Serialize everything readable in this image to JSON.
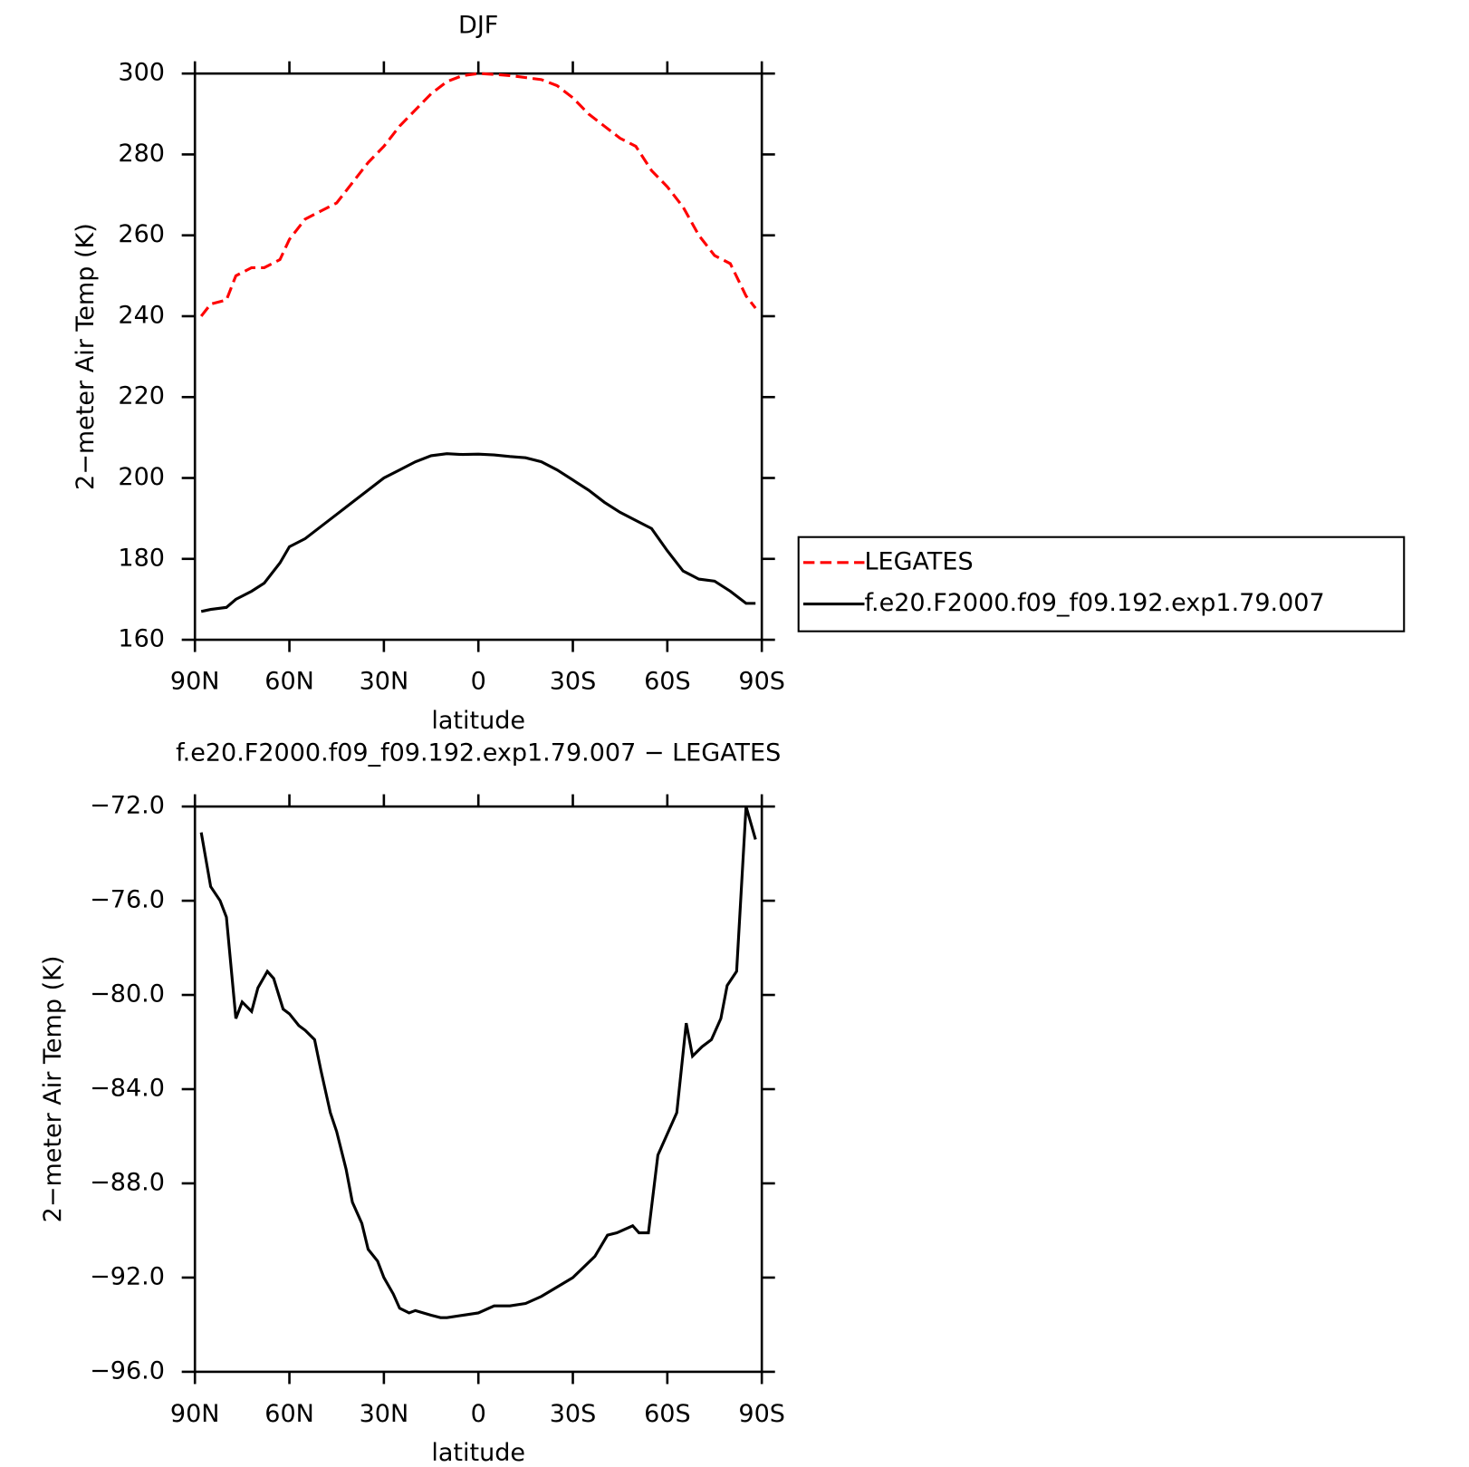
{
  "chart_data": [
    {
      "type": "line",
      "title": "DJF",
      "xlabel": "latitude",
      "ylabel": "2−meter Air Temp (K)",
      "x": [
        88,
        85,
        80,
        77,
        72,
        68,
        63,
        60,
        55,
        50,
        45,
        40,
        35,
        30,
        25,
        20,
        15,
        10,
        5,
        0,
        -5,
        -10,
        -15,
        -20,
        -25,
        -30,
        -35,
        -40,
        -45,
        -50,
        -55,
        -60,
        -65,
        -70,
        -75,
        -80,
        -85,
        -88
      ],
      "series": [
        {
          "name": "LEGATES",
          "color": "#ff0000",
          "style": "dashed",
          "values": [
            240,
            243,
            244,
            250,
            252,
            252,
            254,
            259,
            264,
            266,
            268,
            273,
            278,
            282,
            287,
            291,
            295,
            298,
            299.5,
            300,
            299.8,
            299.5,
            299,
            298.5,
            297,
            294,
            290,
            287,
            284,
            282,
            276,
            272,
            267,
            260,
            255,
            253,
            245,
            242
          ]
        },
        {
          "name": "f.e20.F2000.f09_f09.192.exp1.79.007",
          "color": "#000000",
          "style": "solid",
          "values": [
            167,
            167.5,
            168,
            170,
            172,
            174,
            179,
            183,
            185,
            188,
            191,
            194,
            197,
            200,
            202,
            204,
            205.5,
            206,
            205.8,
            205.9,
            205.7,
            205.3,
            205,
            204,
            202,
            199.5,
            197,
            194,
            191.5,
            189.5,
            187.5,
            182,
            177,
            175,
            174.5,
            172,
            169,
            169
          ]
        }
      ],
      "xlim": [
        90,
        -90
      ],
      "xticks": [
        {
          "value": 90,
          "label": "90N"
        },
        {
          "value": 60,
          "label": "60N"
        },
        {
          "value": 30,
          "label": "30N"
        },
        0,
        {
          "value": -30,
          "label": "30S"
        },
        {
          "value": -60,
          "label": "60S"
        },
        {
          "value": -90,
          "label": "90S"
        }
      ],
      "ylim": [
        160,
        300
      ],
      "yticks": [
        160,
        180,
        200,
        220,
        240,
        260,
        280,
        300
      ],
      "legend": "right"
    },
    {
      "type": "line",
      "title": "f.e20.F2000.f09_f09.192.exp1.79.007 − LEGATES",
      "xlabel": "latitude",
      "ylabel": "2−meter Air Temp (K)",
      "color": "#000000",
      "style": "solid",
      "x": [
        88,
        85,
        82,
        80,
        77,
        75,
        72,
        70,
        67,
        65,
        62,
        60,
        57,
        55,
        52,
        50,
        47,
        45,
        42,
        40,
        37,
        35,
        32,
        30,
        27,
        25,
        22,
        20,
        15,
        12,
        10,
        5,
        0,
        -5,
        -10,
        -15,
        -20,
        -25,
        -30,
        -37,
        -41,
        -44,
        -49,
        -51,
        -54,
        -57,
        -60,
        -63,
        -66,
        -68,
        -71,
        -74,
        -77,
        -79,
        -82,
        -85,
        -88
      ],
      "values": [
        -73.1,
        -75.4,
        -76,
        -76.7,
        -81,
        -80.3,
        -80.7,
        -79.7,
        -79,
        -79.3,
        -80.6,
        -80.8,
        -81.3,
        -81.5,
        -81.9,
        -83.2,
        -85,
        -85.8,
        -87.4,
        -88.8,
        -89.7,
        -90.8,
        -91.3,
        -92,
        -92.7,
        -93.3,
        -93.5,
        -93.4,
        -93.6,
        -93.7,
        -93.7,
        -93.6,
        -93.5,
        -93.2,
        -93.2,
        -93.1,
        -92.8,
        -92.4,
        -92,
        -91.1,
        -90.2,
        -90.1,
        -89.8,
        -90.1,
        -90.1,
        -86.8,
        -85.9,
        -85,
        -81.2,
        -82.6,
        -82.2,
        -81.9,
        -81,
        -79.6,
        -79,
        -72,
        -73.4
      ],
      "xlim": [
        90,
        -90
      ],
      "xticks": [
        {
          "value": 90,
          "label": "90N"
        },
        {
          "value": 60,
          "label": "60N"
        },
        {
          "value": 30,
          "label": "30N"
        },
        0,
        {
          "value": -30,
          "label": "30S"
        },
        {
          "value": -60,
          "label": "60S"
        },
        {
          "value": -90,
          "label": "90S"
        }
      ],
      "ylim": [
        -96,
        -72
      ],
      "yticks": [
        {
          "value": -96,
          "label": "−96.0"
        },
        {
          "value": -92,
          "label": "−92.0"
        },
        {
          "value": -88,
          "label": "−88.0"
        },
        {
          "value": -84,
          "label": "−84.0"
        },
        {
          "value": -80,
          "label": "−80.0"
        },
        {
          "value": -76,
          "label": "−76.0"
        },
        {
          "value": -72,
          "label": "−72.0"
        }
      ]
    }
  ]
}
